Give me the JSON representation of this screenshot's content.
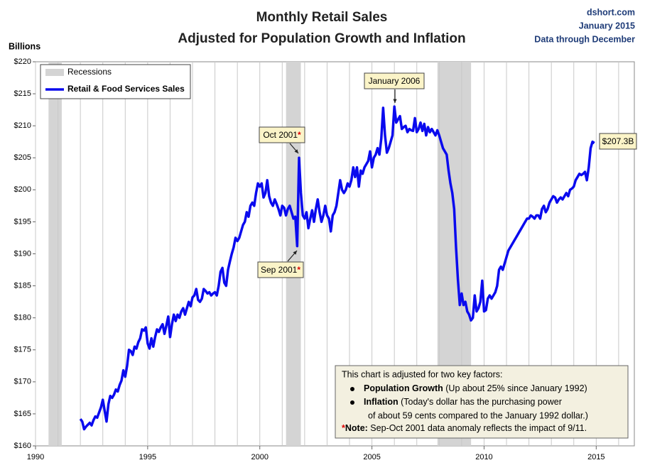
{
  "chart_data": {
    "type": "line",
    "title": "Monthly Retail Sales",
    "subtitle": "Adjusted for Population Growth and Inflation",
    "source": [
      "dshort.com",
      "January 2015",
      "Data through December"
    ],
    "y_label": "Billions",
    "xlim": [
      1990,
      2016.7
    ],
    "xticks": [
      1990,
      1995,
      2000,
      2005,
      2010,
      2015
    ],
    "xgrid": [
      1990,
      1991,
      1992,
      1993,
      1994,
      1995,
      1996,
      1997,
      1998,
      1999,
      2000,
      2001,
      2002,
      2003,
      2004,
      2005,
      2006,
      2007,
      2008,
      2009,
      2010,
      2011,
      2012,
      2013,
      2014,
      2015,
      2016
    ],
    "ylim": [
      160,
      220
    ],
    "yticks": [
      {
        "value": 160,
        "label": "$160"
      },
      {
        "value": 165,
        "label": "$165"
      },
      {
        "value": 170,
        "label": "$170"
      },
      {
        "value": 175,
        "label": "$175"
      },
      {
        "value": 180,
        "label": "$180"
      },
      {
        "value": 185,
        "label": "$185"
      },
      {
        "value": 190,
        "label": "$190"
      },
      {
        "value": 195,
        "label": "$195"
      },
      {
        "value": 200,
        "label": "$200"
      },
      {
        "value": 205,
        "label": "$205"
      },
      {
        "value": 210,
        "label": "$210"
      },
      {
        "value": 215,
        "label": "$215"
      },
      {
        "value": 220,
        "label": "$220"
      }
    ],
    "recessions": [
      [
        1990.58,
        1991.17
      ],
      [
        2001.17,
        2001.83
      ],
      [
        2007.92,
        2009.42
      ]
    ],
    "recession_name": "Recessions",
    "recession_color": "#d4d4d4",
    "legend": "top-left",
    "x": [
      1992,
      1992.083,
      1992.167,
      1992.25,
      1992.333,
      1992.417,
      1992.5,
      1992.583,
      1992.667,
      1992.75,
      1992.833,
      1992.917,
      1993,
      1993.083,
      1993.167,
      1993.25,
      1993.333,
      1993.417,
      1993.5,
      1993.583,
      1993.667,
      1993.75,
      1993.833,
      1993.917,
      1994,
      1994.083,
      1994.167,
      1994.25,
      1994.333,
      1994.417,
      1994.5,
      1994.583,
      1994.667,
      1994.75,
      1994.833,
      1994.917,
      1995,
      1995.083,
      1995.167,
      1995.25,
      1995.333,
      1995.417,
      1995.5,
      1995.583,
      1995.667,
      1995.75,
      1995.833,
      1995.917,
      1996,
      1996.083,
      1996.167,
      1996.25,
      1996.333,
      1996.417,
      1996.5,
      1996.583,
      1996.667,
      1996.75,
      1996.833,
      1996.917,
      1997,
      1997.083,
      1997.167,
      1997.25,
      1997.333,
      1997.417,
      1997.5,
      1997.583,
      1997.667,
      1997.75,
      1997.833,
      1997.917,
      1998,
      1998.083,
      1998.167,
      1998.25,
      1998.333,
      1998.417,
      1998.5,
      1998.583,
      1998.667,
      1998.75,
      1998.833,
      1998.917,
      1999,
      1999.083,
      1999.167,
      1999.25,
      1999.333,
      1999.417,
      1999.5,
      1999.583,
      1999.667,
      1999.75,
      1999.833,
      1999.917,
      2000,
      2000.083,
      2000.167,
      2000.25,
      2000.333,
      2000.417,
      2000.5,
      2000.583,
      2000.667,
      2000.75,
      2000.833,
      2000.917,
      2001,
      2001.083,
      2001.167,
      2001.25,
      2001.333,
      2001.417,
      2001.5,
      2001.583,
      2001.667,
      2001.75,
      2001.833,
      2001.917,
      2002,
      2002.083,
      2002.167,
      2002.25,
      2002.333,
      2002.417,
      2002.5,
      2002.583,
      2002.667,
      2002.75,
      2002.833,
      2002.917,
      2003,
      2003.083,
      2003.167,
      2003.25,
      2003.333,
      2003.417,
      2003.5,
      2003.583,
      2003.667,
      2003.75,
      2003.833,
      2003.917,
      2004,
      2004.083,
      2004.167,
      2004.25,
      2004.333,
      2004.417,
      2004.5,
      2004.583,
      2004.667,
      2004.75,
      2004.833,
      2004.917,
      2005,
      2005.083,
      2005.167,
      2005.25,
      2005.333,
      2005.417,
      2005.5,
      2005.583,
      2005.667,
      2005.75,
      2005.833,
      2005.917,
      2006,
      2006.083,
      2006.167,
      2006.25,
      2006.333,
      2006.417,
      2006.5,
      2006.583,
      2006.667,
      2006.75,
      2006.833,
      2006.917,
      2007,
      2007.083,
      2007.167,
      2007.25,
      2007.333,
      2007.417,
      2007.5,
      2007.583,
      2007.667,
      2007.75,
      2007.833,
      2007.917,
      2008,
      2008.083,
      2008.167,
      2008.25,
      2008.333,
      2008.417,
      2008.5,
      2008.583,
      2008.667,
      2008.75,
      2008.833,
      2008.917,
      2009,
      2009.083,
      2009.167,
      2009.25,
      2009.333,
      2009.417,
      2009.5,
      2009.583,
      2009.667,
      2009.75,
      2009.833,
      2009.917,
      2010,
      2010.083,
      2010.167,
      2010.25,
      2010.333,
      2010.417,
      2010.5,
      2010.583,
      2010.667,
      2010.75,
      2010.833,
      2010.917,
      2011,
      2011.083,
      2011.167,
      2011.25,
      2011.333,
      2011.417,
      2011.5,
      2011.583,
      2011.667,
      2011.75,
      2011.833,
      2011.917,
      2012,
      2012.083,
      2012.167,
      2012.25,
      2012.333,
      2012.417,
      2012.5,
      2012.583,
      2012.667,
      2012.75,
      2012.833,
      2012.917,
      2013,
      2013.083,
      2013.167,
      2013.25,
      2013.333,
      2013.417,
      2013.5,
      2013.583,
      2013.667,
      2013.75,
      2013.833,
      2013.917,
      2014,
      2014.083,
      2014.167,
      2014.25,
      2014.333,
      2014.417,
      2014.5,
      2014.583,
      2014.667,
      2014.75,
      2014.833,
      2014.917
    ],
    "series": [
      {
        "name": "Retail & Food Services Sales",
        "color": "#0a0aee",
        "values": [
          164.2,
          163.8,
          162.6,
          163.0,
          163.3,
          163.6,
          163.2,
          164.0,
          164.6,
          164.4,
          165.2,
          166.0,
          167.2,
          165.5,
          163.8,
          166.5,
          167.8,
          167.5,
          168.0,
          168.8,
          168.5,
          169.5,
          170.2,
          171.8,
          170.8,
          172.5,
          175.0,
          174.8,
          174.2,
          175.5,
          175.2,
          176.2,
          176.8,
          178.2,
          178.0,
          178.5,
          176.0,
          175.2,
          176.8,
          175.5,
          177.0,
          178.2,
          177.8,
          178.5,
          179.0,
          177.5,
          178.8,
          180.2,
          177.0,
          179.0,
          180.5,
          179.5,
          180.5,
          180.0,
          181.0,
          181.5,
          180.5,
          181.5,
          182.5,
          181.8,
          183.2,
          183.5,
          184.5,
          182.8,
          182.5,
          183.0,
          184.5,
          184.2,
          183.8,
          184.0,
          183.5,
          183.8,
          184.0,
          183.5,
          185.0,
          187.2,
          187.8,
          185.5,
          185.0,
          187.5,
          188.8,
          190.0,
          191.0,
          192.5,
          192.0,
          192.5,
          193.5,
          194.5,
          195.0,
          196.5,
          195.8,
          197.5,
          198.0,
          197.5,
          199.5,
          201.0,
          200.5,
          201.0,
          198.8,
          199.5,
          201.5,
          199.0,
          198.0,
          197.5,
          198.5,
          197.8,
          197.0,
          196.0,
          197.5,
          197.2,
          196.0,
          197.0,
          197.5,
          196.5,
          195.5,
          195.8,
          191.2,
          205.0,
          199.5,
          196.0,
          195.5,
          196.5,
          194.0,
          195.5,
          196.8,
          195.0,
          197.0,
          198.5,
          196.5,
          195.0,
          196.0,
          197.5,
          196.0,
          195.5,
          193.5,
          196.0,
          196.5,
          197.5,
          199.5,
          201.5,
          200.0,
          199.5,
          200.0,
          201.0,
          200.5,
          201.5,
          203.5,
          202.0,
          203.5,
          200.5,
          203.0,
          202.5,
          203.5,
          204.0,
          204.5,
          206.0,
          203.5,
          205.0,
          205.5,
          206.5,
          205.5,
          208.0,
          212.8,
          208.5,
          205.8,
          206.5,
          207.5,
          208.5,
          213.0,
          210.5,
          211.0,
          211.5,
          209.5,
          209.8,
          210.0,
          209.0,
          209.5,
          209.3,
          209.2,
          211.2,
          209.0,
          209.5,
          210.5,
          209.2,
          210.3,
          208.5,
          209.8,
          209.0,
          209.5,
          209.0,
          208.5,
          209.3,
          208.5,
          207.5,
          206.5,
          206.0,
          205.5,
          203.0,
          201.0,
          199.5,
          197.0,
          191.0,
          186.0,
          182.0,
          183.8,
          182.0,
          182.5,
          181.0,
          180.5,
          179.6,
          180.0,
          183.5,
          181.0,
          181.5,
          182.5,
          185.8,
          181.0,
          181.2,
          183.0,
          183.5,
          183.0,
          183.5,
          184.0,
          185.0,
          187.5,
          188.0,
          187.5,
          188.5,
          189.5,
          190.5,
          191.0,
          191.5,
          192.0,
          192.5,
          193.0,
          193.5,
          194.0,
          194.5,
          195.0,
          195.5,
          195.5,
          196.0,
          195.8,
          195.5,
          196.0,
          196.0,
          195.5,
          197.0,
          197.5,
          196.5,
          197.0,
          198.0,
          198.5,
          199.0,
          198.8,
          198.0,
          198.5,
          198.8,
          198.5,
          199.0,
          199.5,
          199.0,
          200.0,
          200.2,
          200.5,
          201.5,
          202.0,
          202.5,
          202.3,
          202.5,
          202.8,
          201.5,
          203.5,
          206.5,
          207.5,
          207.3
        ]
      }
    ],
    "annotations": [
      {
        "text": "January 2006"
      },
      {
        "text": "Oct 2001",
        "mark": "*"
      },
      {
        "text": "Sep 2001",
        "mark": "*"
      },
      {
        "text": "$207.3B"
      }
    ],
    "note_box": {
      "intro": "This chart  is adjusted for two key factors:",
      "items": [
        {
          "head": "Population Growth",
          "text": " (Up about 25% since January 1992)"
        },
        {
          "head": "Inflation",
          "text": " (Today's dollar has the purchasing power",
          "cont": "of about 59 cents compared to the January 1992 dollar.)"
        }
      ],
      "mark": "*",
      "note_head": "Note:",
      "note_text": " Sep-Oct 2001 data anomaly reflects the impact of 9/11."
    }
  }
}
